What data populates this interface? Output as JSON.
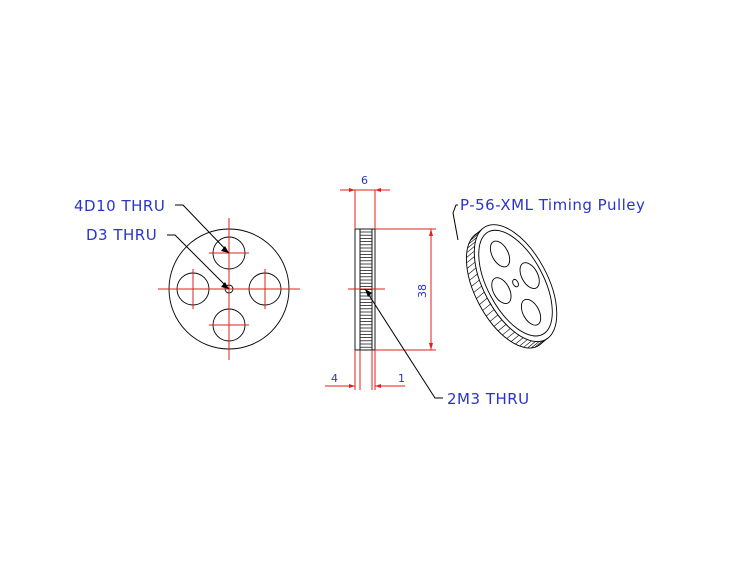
{
  "labels": {
    "holes_4": "4D10 THRU",
    "center_hole": "D3 THRU",
    "set_screw": "2M3 THRU",
    "title": "P-56-XML Timing Pulley"
  },
  "dimensions": {
    "width": "6",
    "diameter": "38",
    "hub": "4",
    "flange": "1"
  },
  "colors": {
    "text": "#2a34c8",
    "center_lines": "#e41d1d",
    "object_lines": "#000000"
  }
}
